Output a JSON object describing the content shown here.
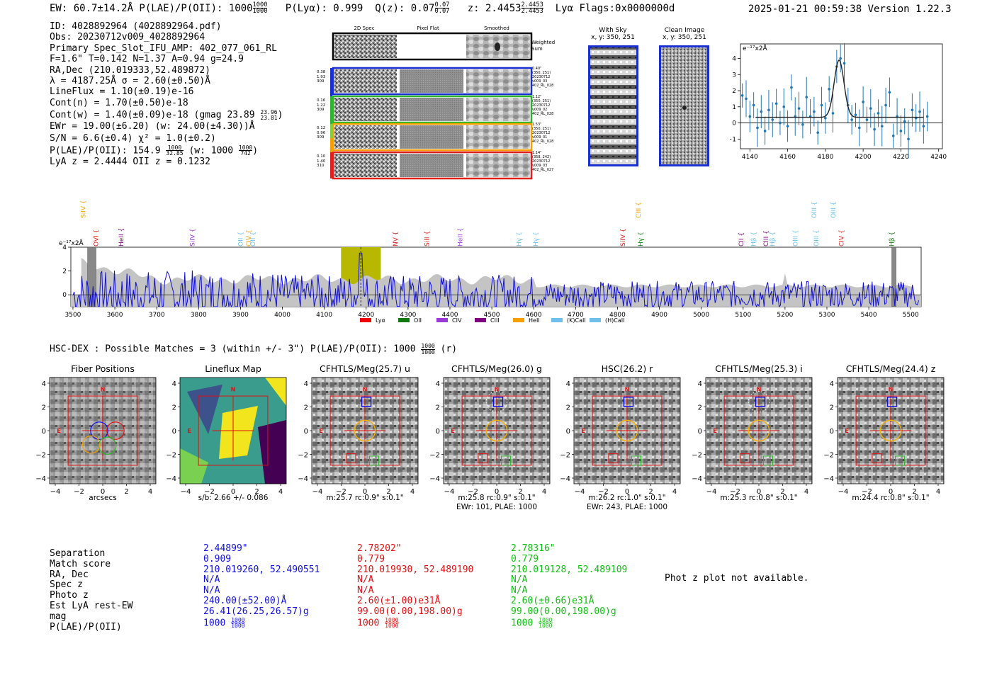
{
  "header": {
    "summary": "EW: 60.7±14.2Å  P(LAE)/P(OII): 1000",
    "plae_top": "1000",
    "plae_bot": "1000",
    "plya": "P(Lyα): 0.999",
    "qz": "Q(z): 0.07",
    "qz_top": "0.07",
    "qz_bot": "0.07",
    "z": "z: 2.4453",
    "z_top": "2.4453",
    "z_bot": "2.4453",
    "lya_flags": "Lyα  Flags:0x0000000d",
    "timestamp": "2025-01-21 00:59:38  Version 1.22.3"
  },
  "info": {
    "lines": [
      "ID: 4028892964 (4028892964.pdf)",
      "Obs: 20230712v009_4028892964",
      "Primary Spec_Slot_IFU_AMP: 402_077_061_RL",
      "F=1.6\"  T=0.142  N=1.37  A=0.94  g=24.9",
      "RA,Dec (210.019333,52.489872)",
      "λ = 4187.25Å  σ = 2.60(±0.50)Å",
      "LineFlux = 1.10(±0.19)e-16",
      "Cont(n) = 1.70(±0.50)e-18"
    ],
    "contw": "Cont(w) = 1.40(±0.09)e-18 (gmag 23.89",
    "contw_top": "23.96",
    "contw_bot": "23.81",
    "ewr": "EWr = 19.00(±6.20) (w: 24.00(±4.30))Å",
    "sn": "S/N = 6.6(±0.4)  χ² = 1.0(±0.2)",
    "plae_a": "P(LAE)/P(OII): 154.9",
    "plae_a_top": "1000",
    "plae_a_bot": "32.85",
    "plae_b": "(w: 1000",
    "plae_b_top": "1000",
    "plae_b_bot": "742",
    "plae_c": ")",
    "lyaz": "LyA z = 2.4444  OII z = 0.1232"
  },
  "spec2d": {
    "col_headers": [
      "2D Spec",
      "Pixel Flat",
      "Smoothed"
    ],
    "weighted": "Weighted Sum",
    "rows": [
      {
        "left": [
          "0.38",
          "1.93",
          "309"
        ],
        "right": [
          "0.40\"",
          "(350, 251)",
          "20230712",
          "v009_03",
          "402_RL_028"
        ],
        "color": "#1a2fd0"
      },
      {
        "left": [
          "0.16",
          "1.22",
          "309"
        ],
        "right": [
          "1.12\"",
          "(350, 251)",
          "20230712",
          "v009_02",
          "402_RL_028"
        ],
        "color": "#2ab52a"
      },
      {
        "left": [
          "0.12",
          "0.96",
          "309"
        ],
        "right": [
          "1.53\"",
          "(350, 251)",
          "20230712",
          "v009_01",
          "402_RL_028"
        ],
        "color": "#f5a000"
      },
      {
        "left": [
          "0.10",
          "1.40",
          "310"
        ],
        "right": [
          "1.14\"",
          "(358, 242)",
          "20230712",
          "v009_03",
          "402_RL_027"
        ],
        "color": "#e0201a"
      }
    ],
    "bar_colors": [
      "#1a2fd0",
      "#2ab52a",
      "#80d040",
      "#f5a000",
      "#e0201a"
    ]
  },
  "sky": {
    "title": "With Sky",
    "coords": "x, y: 350, 251"
  },
  "clean": {
    "title": "Clean Image",
    "coords": "x, y: 350, 251"
  },
  "zoom_chart": {
    "type": "scatter",
    "ylabel": "e⁻¹⁷x2Å",
    "xlim": [
      4135,
      4242
    ],
    "ylim": [
      -1.6,
      4.9
    ],
    "xticks": [
      4140,
      4160,
      4180,
      4200,
      4220,
      4240
    ],
    "yticks": [
      -1,
      0,
      1,
      2,
      3,
      4
    ],
    "x": [
      4136.0,
      4138.0,
      4140.0,
      4142.0,
      4144.0,
      4146.0,
      4148.0,
      4150.0,
      4152.0,
      4154.0,
      4156.0,
      4158.0,
      4160.0,
      4162.0,
      4164.0,
      4166.0,
      4168.0,
      4170.0,
      4172.0,
      4174.0,
      4176.0,
      4178.0,
      4180.0,
      4182.0,
      4184.0,
      4186.0,
      4188.0,
      4190.0,
      4192.0,
      4194.0,
      4196.0,
      4198.0,
      4200.0,
      4202.0,
      4204.0,
      4206.0,
      4208.0,
      4210.0,
      4212.0,
      4214.0,
      4216.0,
      4218.0,
      4220.0,
      4222.0,
      4224.0,
      4226.0,
      4228.0,
      4230.0,
      4232.0,
      4234.0
    ],
    "y": [
      1.7,
      1.5,
      0.4,
      1.1,
      -0.3,
      0.7,
      -0.5,
      0.8,
      0.2,
      1.2,
      0.0,
      1.0,
      -0.2,
      2.2,
      0.4,
      0.9,
      -0.1,
      1.6,
      0.4,
      0.7,
      -0.6,
      1.1,
      0.3,
      2.1,
      0.6,
      3.5,
      4.0,
      3.7,
      1.1,
      0.2,
      0.5,
      -0.3,
      1.3,
      0.2,
      0.9,
      -0.4,
      0.6,
      -0.2,
      1.1,
      1.9,
      -0.8,
      0.4,
      -0.5,
      0.1,
      -1.0,
      0.8,
      0.3,
      0.7,
      -0.2,
      0.4
    ],
    "fit": {
      "baseline": 0.35,
      "amp": 3.55,
      "center": 4187.25,
      "sigma": 2.6
    }
  },
  "full_spectrum": {
    "type": "line",
    "ylabel": "e⁻¹⁷x2Å",
    "xlim": [
      3495,
      5525
    ],
    "ylim": [
      -1.0,
      4.0
    ],
    "xticks": [
      3500,
      3600,
      3700,
      3800,
      3900,
      4000,
      4100,
      4200,
      4300,
      4400,
      4500,
      4600,
      4700,
      4800,
      4900,
      5000,
      5100,
      5200,
      5300,
      5400,
      5500
    ],
    "yticks": [
      0,
      2,
      4
    ],
    "highlight": [
      4140,
      4235
    ],
    "line_center": 4187.25,
    "masked": [
      [
        3535,
        3555
      ],
      [
        5455,
        5465
      ]
    ],
    "line_labels": [
      {
        "label": "SiIV",
        "x": 3530,
        "color": "#f5a000",
        "tier": "high"
      },
      {
        "label": "OVI",
        "x": 3560,
        "color": "#e0201a",
        "tier": "low"
      },
      {
        "label": "HeII",
        "x": 3620,
        "color": "#7d0080",
        "tier": "low"
      },
      {
        "label": "SiIV",
        "x": 3790,
        "color": "#9a3bd6",
        "tier": "low"
      },
      {
        "label": "OII",
        "x": 3905,
        "color": "#6ec0ea",
        "tier": "low"
      },
      {
        "label": "CIV",
        "x": 3925,
        "color": "#f5a000",
        "tier": "low"
      },
      {
        "label": "OII",
        "x": 3935,
        "color": "#6ec0ea",
        "tier": "low"
      },
      {
        "label": "NV",
        "x": 4275,
        "color": "#e0201a",
        "tier": "low"
      },
      {
        "label": "SiII",
        "x": 4350,
        "color": "#e0201a",
        "tier": "low"
      },
      {
        "label": "HeII",
        "x": 4430,
        "color": "#9a3bd6",
        "tier": "low"
      },
      {
        "label": "Hγ",
        "x": 4570,
        "color": "#6ec0ea",
        "tier": "low"
      },
      {
        "label": "Hγ",
        "x": 4610,
        "color": "#6ec0ea",
        "tier": "low"
      },
      {
        "label": "SiIV",
        "x": 4818,
        "color": "#e0201a",
        "tier": "low"
      },
      {
        "label": "CIII",
        "x": 4855,
        "color": "#f5a000",
        "tier": "high"
      },
      {
        "label": "Hγ",
        "x": 4860,
        "color": "#107a10",
        "tier": "low"
      },
      {
        "label": "CII",
        "x": 5100,
        "color": "#7d0080",
        "tier": "low"
      },
      {
        "label": "Hβ",
        "x": 5130,
        "color": "#6ec0ea",
        "tier": "low"
      },
      {
        "label": "CIII",
        "x": 5160,
        "color": "#7d0080",
        "tier": "low"
      },
      {
        "label": "Hβ",
        "x": 5175,
        "color": "#6ec0ea",
        "tier": "low"
      },
      {
        "label": "OIII",
        "x": 5230,
        "color": "#6ec0ea",
        "tier": "low"
      },
      {
        "label": "OIII",
        "x": 5275,
        "color": "#6ec0ea",
        "tier": "high"
      },
      {
        "label": "OIII",
        "x": 5280,
        "color": "#6ec0ea",
        "tier": "low"
      },
      {
        "label": "OIII",
        "x": 5320,
        "color": "#6ec0ea",
        "tier": "high"
      },
      {
        "label": "CIV",
        "x": 5340,
        "color": "#e0201a",
        "tier": "low"
      },
      {
        "label": "Hβ",
        "x": 5460,
        "color": "#107a10",
        "tier": "low"
      }
    ],
    "legend": [
      {
        "label": "Lyα",
        "color": "#f00000"
      },
      {
        "label": "OII",
        "color": "#107a10"
      },
      {
        "label": "CIV",
        "color": "#9a3bd6"
      },
      {
        "label": "CIII",
        "color": "#7d0080"
      },
      {
        "label": "HeII",
        "color": "#f5a000"
      },
      {
        "label": "(K)CaII",
        "color": "#6ec0ea"
      },
      {
        "label": "(H)CaII",
        "color": "#6ec0ea"
      }
    ]
  },
  "hsc": {
    "title": "HSC-DEX : Possible Matches = 3 (within +/- 3\")  P(LAE)/P(OII): 1000",
    "title_top": "1000",
    "title_bot": "1000",
    "title_suffix": "(r)",
    "panels": [
      {
        "title": "Fiber Positions",
        "footer": [
          "arcsecs"
        ]
      },
      {
        "title": "Lineflux Map",
        "footer": [
          "s/b: 2.66 +/- 0.086"
        ]
      },
      {
        "title": "CFHTLS/Meg(25.7) u",
        "footer": [
          "m:25.7 rc:0.9\"  s:0.1\""
        ]
      },
      {
        "title": "CFHTLS/Meg(26.0) g",
        "footer": [
          "m:25.8 rc:0.9\"  s:0.1\"",
          "EWr: 101, PLAE: 1000"
        ]
      },
      {
        "title": "HSC(26.2) r",
        "footer": [
          "m:26.2 rc:1.0\"  s:0.1\"",
          "EWr: 243, PLAE: 1000"
        ]
      },
      {
        "title": "CFHTLS/Meg(25.3) i",
        "footer": [
          "m:25.3 rc:0.8\"  s:0.1\""
        ]
      },
      {
        "title": "CFHTLS/Meg(24.4) z",
        "footer": [
          "m:24.4 rc:0.8\"  s:0.1\""
        ]
      }
    ],
    "axis_ticks": [
      "4",
      "2",
      "0",
      "−2",
      "−4"
    ],
    "xaxis_ticks": [
      "−4",
      "−2",
      "0",
      "2",
      "4"
    ],
    "compass_n": "N",
    "compass_e": "E"
  },
  "matches": {
    "row_labels": [
      "Separation",
      "Match score",
      "RA, Dec",
      "Spec z",
      "Photo z",
      "Est LyA rest-EW",
      "mag",
      "P(LAE)/P(OII)"
    ],
    "columns": [
      {
        "color": "#1010e0",
        "values": [
          "2.44899\"",
          "0.909",
          "210.019260, 52.490551",
          "N/A",
          "N/A",
          "240.00(±52.00)Å",
          "26.41(26.25,26.57)g"
        ],
        "plae": "1000",
        "plae_top": "1000",
        "plae_bot": "1000"
      },
      {
        "color": "#e01010",
        "values": [
          "2.78202\"",
          "0.779",
          "210.019930, 52.489190",
          "N/A",
          "N/A",
          "2.60(±1.00)e31Å",
          "99.00(0.00,198.00)g"
        ],
        "plae": "1000",
        "plae_top": "1000",
        "plae_bot": "1000"
      },
      {
        "color": "#10c010",
        "values": [
          "2.78316\"",
          "0.779",
          "210.019128, 52.489109",
          "N/A",
          "N/A",
          "2.60(±0.66)e31Å",
          "99.00(0.00,198.00)g"
        ],
        "plae": "1000",
        "plae_top": "1000",
        "plae_bot": "1000"
      }
    ],
    "photz_note": "Phot z plot not available."
  }
}
